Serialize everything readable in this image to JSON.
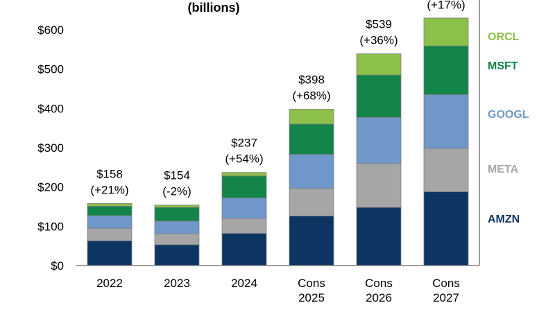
{
  "chart_data": {
    "type": "bar",
    "stacked": true,
    "title": "(billions)",
    "categories": [
      "2022",
      "2023",
      "2024",
      "Cons 2025",
      "Cons 2026",
      "Cons 2027"
    ],
    "ylim": [
      0,
      600
    ],
    "yticks": [
      0,
      100,
      200,
      300,
      400,
      500,
      600
    ],
    "ytick_labels": [
      "$0",
      "$100",
      "$200",
      "$300",
      "$400",
      "$500",
      "$600"
    ],
    "series": [
      {
        "name": "AMZN",
        "color": "#0d3562",
        "values": [
          63,
          53,
          82,
          126,
          148,
          188
        ]
      },
      {
        "name": "META",
        "color": "#a6a6a6",
        "values": [
          32,
          28,
          38,
          70,
          112,
          110
        ]
      },
      {
        "name": "GOOGL",
        "color": "#6f97c9",
        "values": [
          32,
          32,
          52,
          87,
          117,
          137
        ]
      },
      {
        "name": "MSFT",
        "color": "#13844a",
        "values": [
          24,
          35,
          56,
          77,
          108,
          124
        ]
      },
      {
        "name": "ORCL",
        "color": "#8cc04a",
        "values": [
          7,
          6,
          9,
          38,
          54,
          71
        ]
      }
    ],
    "totals": [
      158,
      154,
      237,
      398,
      539,
      629
    ],
    "data_labels": [
      [
        "$158",
        "(+21%)"
      ],
      [
        "$154",
        "(-2%)"
      ],
      [
        "$237",
        "(+54%)"
      ],
      [
        "$398",
        "(+68%)"
      ],
      [
        "$539",
        "(+36%)"
      ],
      [
        "",
        "(+17%)"
      ]
    ],
    "legend_order": [
      "ORCL",
      "MSFT",
      "GOOGL",
      "META",
      "AMZN"
    ],
    "legend_position": "right"
  }
}
